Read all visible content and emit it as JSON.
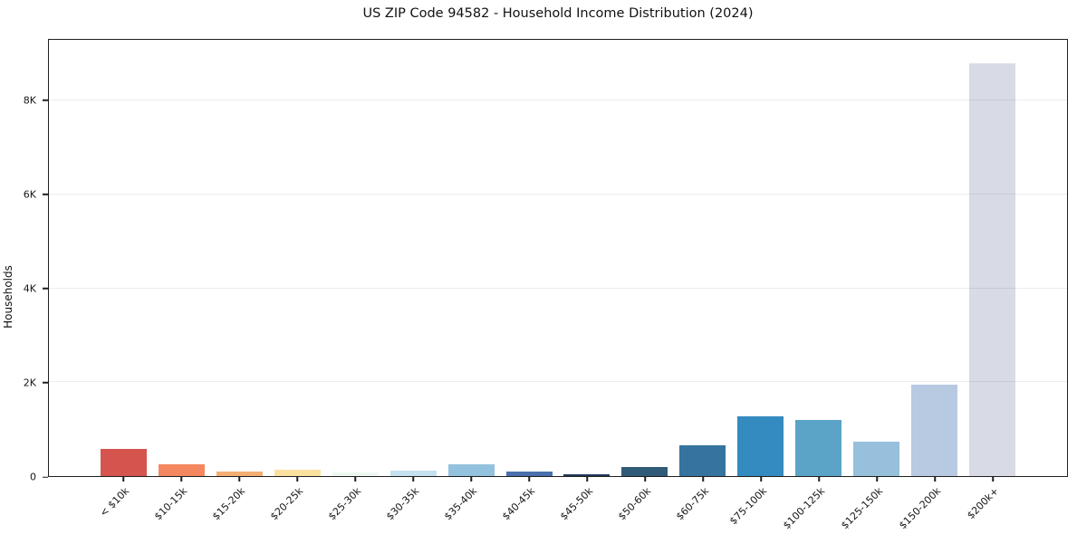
{
  "chart_data": {
    "type": "bar",
    "title": "US ZIP Code 94582 - Household Income Distribution (2024)",
    "xlabel": "",
    "ylabel": "Households",
    "ylim": [
      0,
      9300
    ],
    "grid": "horizontal-light",
    "legend": "none",
    "frame": "full-box",
    "xtick_rotation_deg": 45,
    "yticks": [
      {
        "value": 0,
        "label": "0"
      },
      {
        "value": 2000,
        "label": "2K"
      },
      {
        "value": 4000,
        "label": "4K"
      },
      {
        "value": 6000,
        "label": "6K"
      },
      {
        "value": 8000,
        "label": "8K"
      }
    ],
    "categories": [
      "< $10k",
      "$10-15k",
      "$15-20k",
      "$20-25k",
      "$25-30k",
      "$30-35k",
      "$35-40k",
      "$40-45k",
      "$45-50k",
      "$50-60k",
      "$60-75k",
      "$75-100k",
      "$100-125k",
      "$125-150k",
      "$150-200k",
      "$200k+"
    ],
    "values": [
      580,
      250,
      90,
      140,
      70,
      120,
      260,
      100,
      40,
      200,
      650,
      1280,
      1200,
      730,
      1940,
      8800
    ],
    "bar_colors": [
      "#d6544e",
      "#f4875f",
      "#f3ae73",
      "#fbe1a0",
      "#eef8f2",
      "#c3e1ee",
      "#93c2de",
      "#4a70ae",
      "#24395b",
      "#2f5a78",
      "#36749f",
      "#348bc0",
      "#5ba4c7",
      "#96c0dc",
      "#b8c9e2",
      "#d8dae6"
    ]
  },
  "style_colors": {
    "background": "#ffffff",
    "spine": "#1f1f1f",
    "gridline": "#ededed",
    "text": "#111111"
  }
}
